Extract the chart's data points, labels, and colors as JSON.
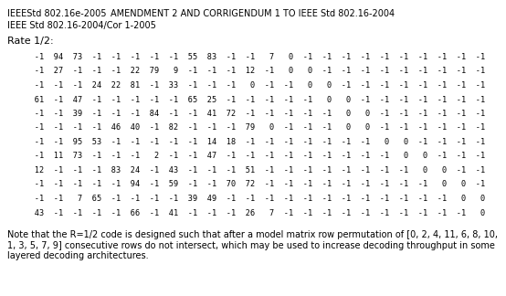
{
  "header_left_line1": "IEEEStd 802.16e-2005",
  "header_left_line2": "IEEE Std 802.16-2004/Cor 1-2005",
  "header_right": "AMENDMENT 2 AND CORRIGENDUM 1 TO IEEE Std 802.16-2004",
  "rate_label": "Rate 1/2:",
  "matrix_rows": [
    "   -1  94  73  -1  -1  -1  -1  -1  55  83  -1  -1   7   0  -1  -1  -1  -1  -1  -1  -1  -1  -1  -1",
    "   -1  27  -1  -1  -1  22  79   9  -1  -1  -1  12  -1   0   0  -1  -1  -1  -1  -1  -1  -1  -1  -1",
    "   -1  -1  -1  24  22  81  -1  33  -1  -1  -1   0  -1  -1   0   0  -1  -1  -1  -1  -1  -1  -1  -1",
    "   61  -1  47  -1  -1  -1  -1  -1  65  25  -1  -1  -1  -1  -1   0   0  -1  -1  -1  -1  -1  -1  -1",
    "   -1  -1  39  -1  -1  -1  84  -1  -1  41  72  -1  -1  -1  -1  -1   0   0  -1  -1  -1  -1  -1  -1",
    "   -1  -1  -1  -1  46  40  -1  82  -1  -1  -1  79   0  -1  -1  -1   0   0  -1  -1  -1  -1  -1  -1",
    "   -1  -1  95  53  -1  -1  -1  -1  -1  14  18  -1  -1  -1  -1  -1  -1  -1   0   0  -1  -1  -1  -1",
    "   -1  11  73  -1  -1  -1   2  -1  -1  47  -1  -1  -1  -1  -1  -1  -1  -1  -1   0   0  -1  -1  -1",
    "   12  -1  -1  -1  83  24  -1  43  -1  -1  -1  51  -1  -1  -1  -1  -1  -1  -1  -1   0   0  -1  -1",
    "   -1  -1  -1  -1  -1  94  -1  59  -1  -1  70  72  -1  -1  -1  -1  -1  -1  -1  -1  -1   0   0  -1",
    "   -1  -1   7  65  -1  -1  -1  -1  39  49  -1  -1  -1  -1  -1  -1  -1  -1  -1  -1  -1  -1   0   0",
    "   43  -1  -1  -1  -1  66  -1  41  -1  -1  -1  26   7  -1  -1  -1  -1  -1  -1  -1  -1  -1  -1   0"
  ],
  "note_text": "Note that the R=1/2 code is designed such that after a model matrix row permutation of [0, 2, 4, 11, 6, 8, 10,\n1, 3, 5, 7, 9] consecutive rows do not intersect, which may be used to increase decoding throughput in some\nlayered decoding architectures.",
  "bg_color": "#ffffff",
  "text_color": "#000000",
  "header_fontsize": 7.0,
  "rate_fontsize": 8.0,
  "matrix_fontsize": 6.2,
  "note_fontsize": 7.0,
  "fig_width": 5.54,
  "fig_height": 3.24,
  "dpi": 100
}
